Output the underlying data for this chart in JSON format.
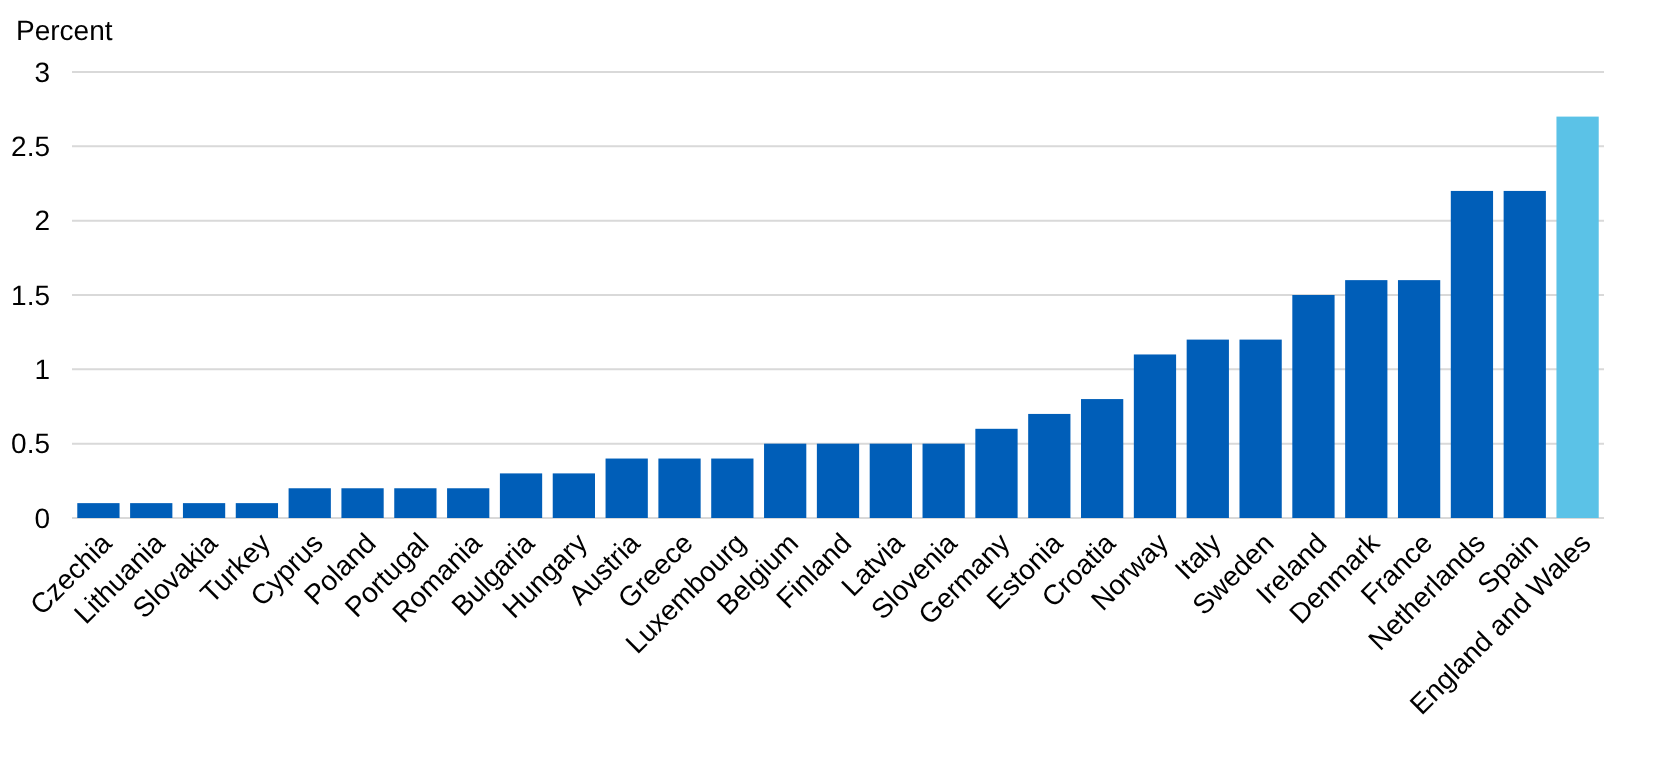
{
  "chart_data": {
    "type": "bar",
    "ylabel": "Percent",
    "categories": [
      "Czechia",
      "Lithuania",
      "Slovakia",
      "Turkey",
      "Cyprus",
      "Poland",
      "Portugal",
      "Romania",
      "Bulgaria",
      "Hungary",
      "Austria",
      "Greece",
      "Luxembourg",
      "Belgium",
      "Finland",
      "Latvia",
      "Slovenia",
      "Germany",
      "Estonia",
      "Croatia",
      "Norway",
      "Italy",
      "Sweden",
      "Ireland",
      "Denmark",
      "France",
      "Netherlands",
      "Spain",
      "England and Wales"
    ],
    "values": [
      0.1,
      0.1,
      0.1,
      0.1,
      0.2,
      0.2,
      0.2,
      0.2,
      0.3,
      0.3,
      0.4,
      0.4,
      0.4,
      0.5,
      0.5,
      0.5,
      0.5,
      0.6,
      0.7,
      0.8,
      1.1,
      1.2,
      1.2,
      1.5,
      1.6,
      1.6,
      2.2,
      2.2,
      2.7
    ],
    "colors": [
      "#005eb8",
      "#005eb8",
      "#005eb8",
      "#005eb8",
      "#005eb8",
      "#005eb8",
      "#005eb8",
      "#005eb8",
      "#005eb8",
      "#005eb8",
      "#005eb8",
      "#005eb8",
      "#005eb8",
      "#005eb8",
      "#005eb8",
      "#005eb8",
      "#005eb8",
      "#005eb8",
      "#005eb8",
      "#005eb8",
      "#005eb8",
      "#005eb8",
      "#005eb8",
      "#005eb8",
      "#005eb8",
      "#005eb8",
      "#005eb8",
      "#005eb8",
      "#5bc2e7"
    ],
    "ylim": [
      0,
      3
    ],
    "yticks": [
      0,
      0.5,
      1,
      1.5,
      2,
      2.5,
      3
    ],
    "grid": "y"
  }
}
